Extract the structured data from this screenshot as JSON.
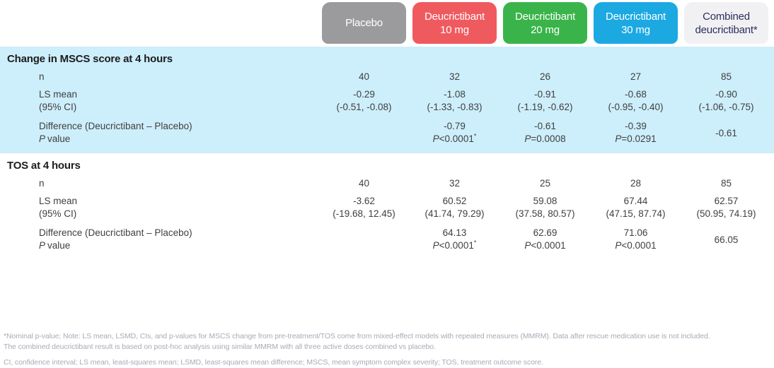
{
  "chart_data": {
    "type": "table",
    "columns": [
      {
        "name": "Placebo",
        "line1": "Placebo",
        "line2": "",
        "bg": "#9b9b9d",
        "fg": "#ffffff"
      },
      {
        "name": "Deucrictibant 10 mg",
        "line1": "Deucrictibant",
        "line2": "10 mg",
        "bg": "#ef5a5f",
        "fg": "#ffffff"
      },
      {
        "name": "Deucrictibant 20 mg",
        "line1": "Deucrictibant",
        "line2": "20 mg",
        "bg": "#3ab44a",
        "fg": "#ffffff"
      },
      {
        "name": "Deucrictibant 30 mg",
        "line1": "Deucrictibant",
        "line2": "30 mg",
        "bg": "#1ca9e2",
        "fg": "#ffffff"
      },
      {
        "name": "Combined deucrictibant*",
        "line1": "Combined",
        "line2": "deucrictibant*",
        "bg": "#f1f1f4",
        "fg": "#2b2e5c"
      }
    ],
    "row_labels": {
      "n": "n",
      "ls_mean": "LS mean",
      "ci": "(95% CI)",
      "difference": "Difference (Deucrictibant – Placebo)",
      "p_symbol": "P",
      "p_value_suffix": "value"
    },
    "sections": [
      {
        "title": "Change in MSCS score at 4 hours",
        "n": [
          "40",
          "32",
          "26",
          "27",
          "85"
        ],
        "ls_mean": [
          "-0.29",
          "-1.08",
          "-0.91",
          "-0.68",
          "-0.90"
        ],
        "ci": [
          "(-0.51, -0.08)",
          "(-1.33, -0.83)",
          "(-1.19, -0.62)",
          "(-0.95, -0.40)",
          "(-1.06, -0.75)"
        ],
        "diff": [
          "",
          "-0.79",
          "-0.61",
          "-0.39",
          "-0.61"
        ],
        "pvals": [
          "",
          "<0.0001",
          "=0.0008",
          "=0.0291",
          ""
        ],
        "pstars": [
          "",
          "*",
          "",
          "",
          ""
        ]
      },
      {
        "title": "TOS at 4 hours",
        "n": [
          "40",
          "32",
          "25",
          "28",
          "85"
        ],
        "ls_mean": [
          "-3.62",
          "60.52",
          "59.08",
          "67.44",
          "62.57"
        ],
        "ci": [
          "(-19.68, 12.45)",
          "(41.74, 79.29)",
          "(37.58, 80.57)",
          "(47.15, 87.74)",
          "(50.95, 74.19)"
        ],
        "diff": [
          "",
          "64.13",
          "62.69",
          "71.06",
          "66.05"
        ],
        "pvals": [
          "",
          "<0.0001",
          "<0.0001",
          "<0.0001",
          ""
        ],
        "pstars": [
          "",
          "*",
          "",
          "",
          ""
        ]
      }
    ],
    "styles": {
      "section_highlight_bg": "#cdeefb",
      "body_text": "#3f3f3f",
      "footnote_text": "#a9aab8"
    }
  },
  "footnotes": [
    "*Nominal p-value; Note: LS mean, LSMD, CIs, and p-values for MSCS change from pre-treatment/TOS come from mixed-effect models with repeated measures (MMRM). Data after rescue medication use is not included.",
    "The combined deucrictibant result is based on post-hoc analysis using similar MMRM with all three active doses combined vs placebo.",
    "CI, confidence interval; LS mean, least-squares mean; LSMD, least-squares mean difference; MSCS, mean symptom complex severity; TOS, treatment outcome score."
  ]
}
